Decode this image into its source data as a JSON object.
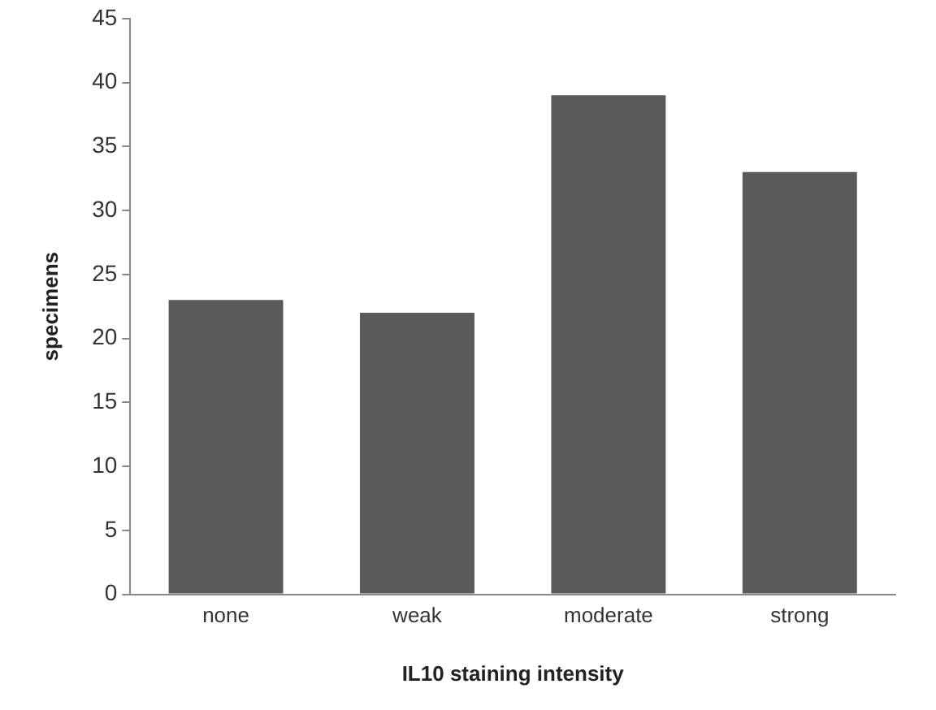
{
  "chart_data": {
    "type": "bar",
    "xlabel": "IL10 staining intensity",
    "ylabel": "specimens",
    "categories": [
      "none",
      "weak",
      "moderate",
      "strong"
    ],
    "values": [
      23,
      22,
      39,
      33
    ],
    "color": "#5a5a5a",
    "ylim": [
      0,
      45
    ],
    "yticks": [
      0,
      5,
      10,
      15,
      20,
      25,
      30,
      35,
      40,
      45
    ],
    "grid": false,
    "legend": false
  }
}
